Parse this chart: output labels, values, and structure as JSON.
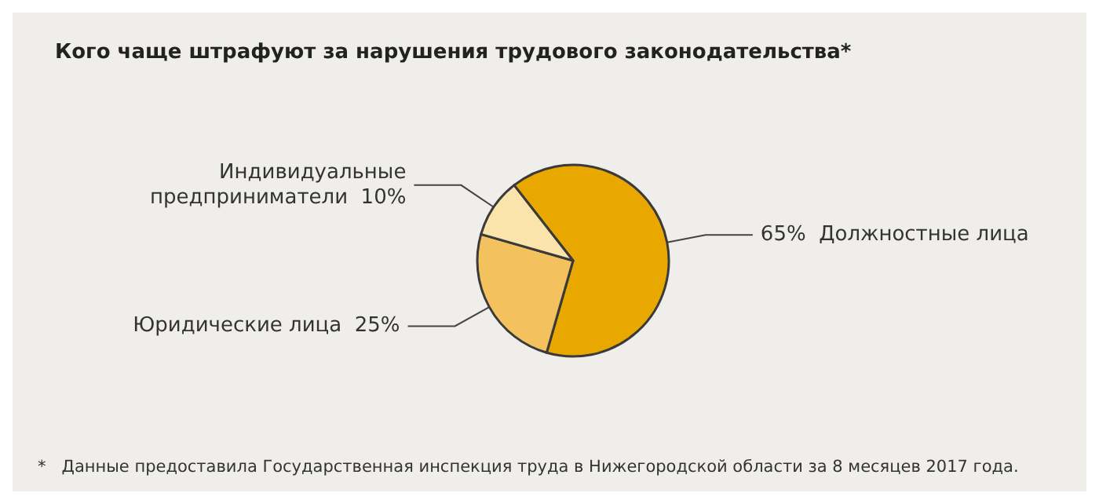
{
  "chart_data": {
    "type": "pie",
    "title": "Кого чаще штрафуют за нарушения трудового законодательства*",
    "categories": [
      "Должностные лица",
      "Юридические лица",
      "Индивидуальные предприниматели"
    ],
    "values": [
      65,
      25,
      10
    ],
    "colors": [
      "#e8a800",
      "#f3c25e",
      "#fbe3ac"
    ],
    "value_labels": [
      "65%",
      "25%",
      "10%"
    ],
    "annotations": [
      "*   Данные предоставила Государственная инспекция труда в Нижегородской области за 8 месяцев 2017 года."
    ],
    "legend": false
  }
}
